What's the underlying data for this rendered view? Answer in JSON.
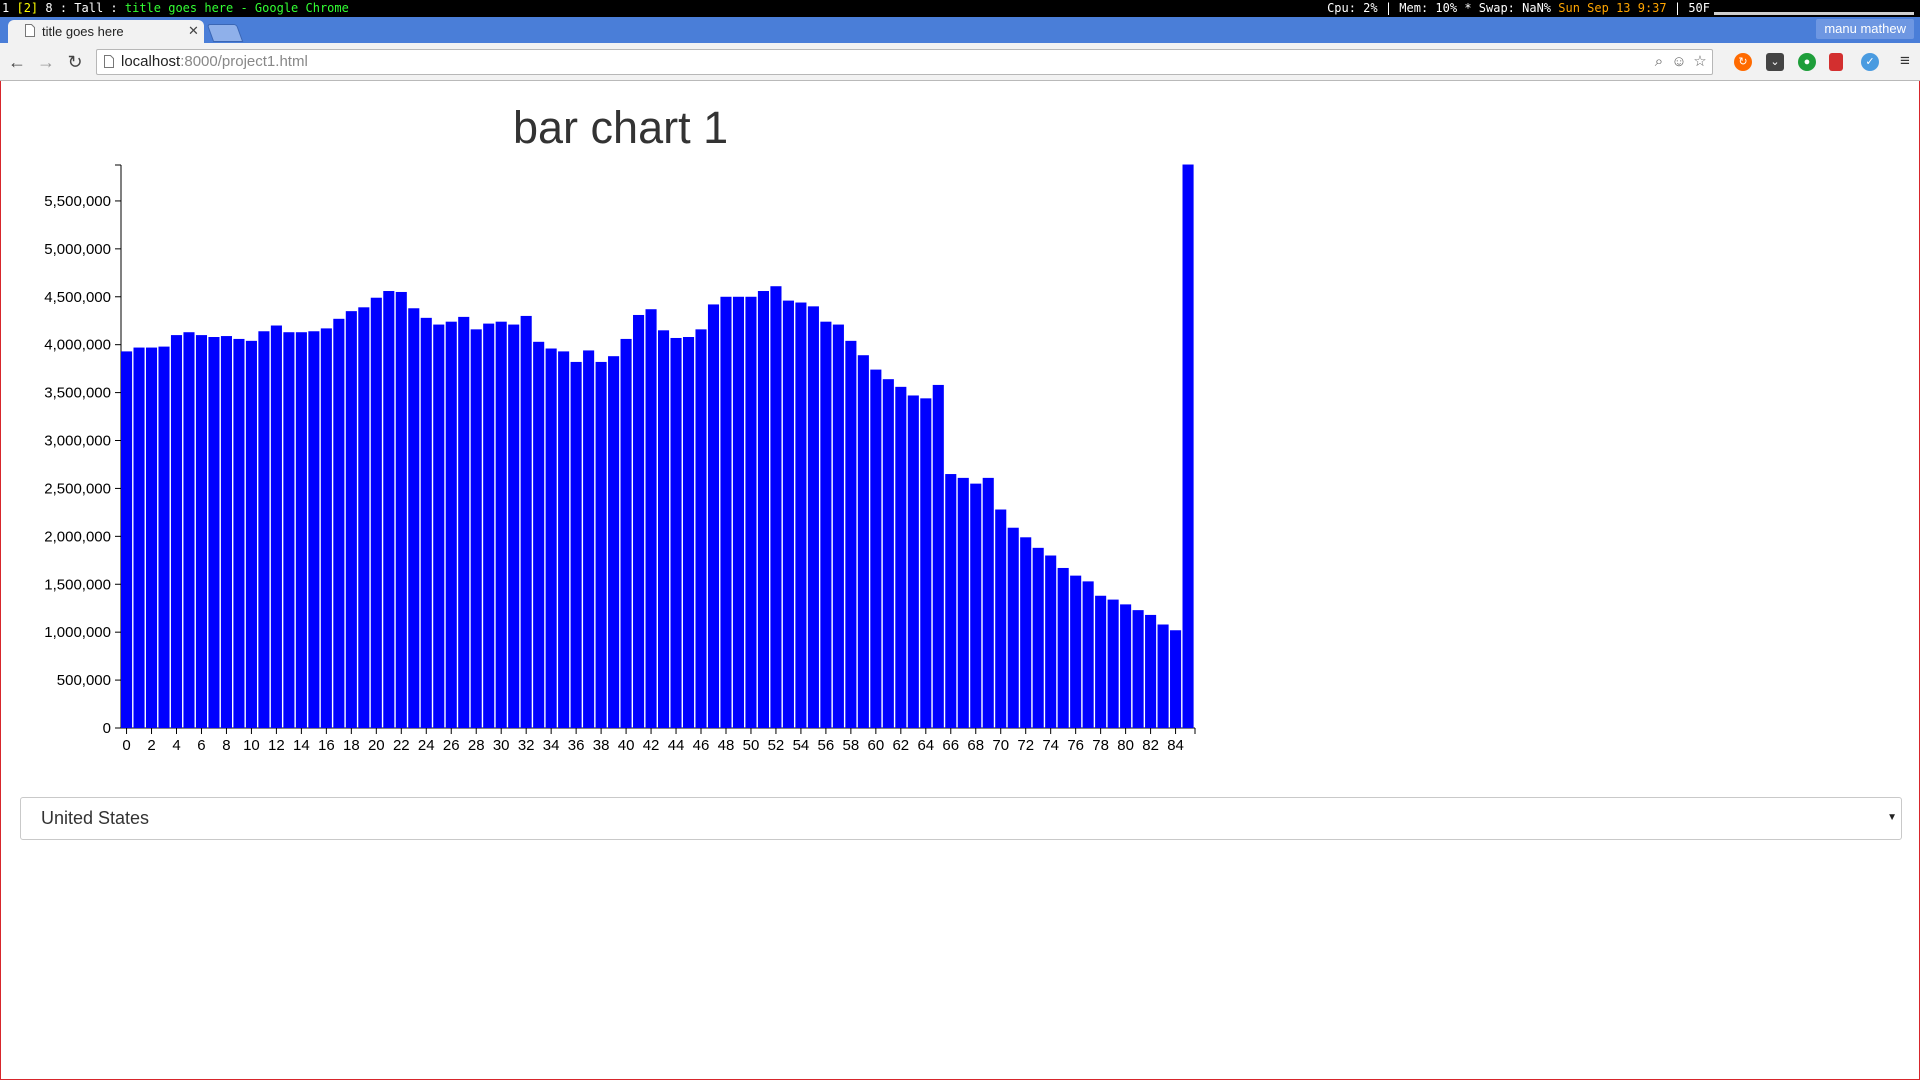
{
  "statusbar": {
    "workspaces": "1",
    "active_workspace": "[2]",
    "workspace_rest": "8 : Tall :",
    "window_title": "title goes here - Google Chrome",
    "stats": "Cpu: 2% | Mem: 10% * Swap: NaN%",
    "datetime": "Sun Sep 13  9:37",
    "temp": "| 50F"
  },
  "browser": {
    "tab_title": "title goes here",
    "profile_name": "manu mathew",
    "url_host": "localhost",
    "url_rest": ":8000/project1.html"
  },
  "icons": {
    "back": "back-arrow-icon",
    "forward": "forward-arrow-icon",
    "reload": "reload-icon",
    "zoom": "magnifier-icon",
    "reddit": "reddit-icon",
    "star": "star-icon",
    "menu": "hamburger-menu-icon"
  },
  "colors": {
    "bar": "#0000ff",
    "tabstrip": "#4a7ed8",
    "status_yellow": "#ffff00",
    "status_green": "#33ff33",
    "status_orange": "#ffa500"
  },
  "chart_data": {
    "type": "bar",
    "title": "bar chart 1",
    "xlabel": "",
    "ylabel": "",
    "ylim": [
      0,
      5875000
    ],
    "yticks": [
      0,
      500000,
      1000000,
      1500000,
      2000000,
      2500000,
      3000000,
      3500000,
      4000000,
      4500000,
      5000000,
      5500000
    ],
    "ytick_labels": [
      "0",
      "500,000",
      "1,000,000",
      "1,500,000",
      "2,000,000",
      "2,500,000",
      "3,000,000",
      "3,500,000",
      "4,000,000",
      "4,500,000",
      "5,000,000",
      "5,500,000"
    ],
    "xtick_labels": [
      "0",
      "2",
      "4",
      "6",
      "8",
      "10",
      "12",
      "14",
      "16",
      "18",
      "20",
      "22",
      "24",
      "26",
      "28",
      "30",
      "32",
      "34",
      "36",
      "38",
      "40",
      "42",
      "44",
      "46",
      "48",
      "50",
      "52",
      "54",
      "56",
      "58",
      "60",
      "62",
      "64",
      "66",
      "68",
      "70",
      "72",
      "74",
      "76",
      "78",
      "80",
      "82",
      "84"
    ],
    "categories": [
      0,
      1,
      2,
      3,
      4,
      5,
      6,
      7,
      8,
      9,
      10,
      11,
      12,
      13,
      14,
      15,
      16,
      17,
      18,
      19,
      20,
      21,
      22,
      23,
      24,
      25,
      26,
      27,
      28,
      29,
      30,
      31,
      32,
      33,
      34,
      35,
      36,
      37,
      38,
      39,
      40,
      41,
      42,
      43,
      44,
      45,
      46,
      47,
      48,
      49,
      50,
      51,
      52,
      53,
      54,
      55,
      56,
      57,
      58,
      59,
      60,
      61,
      62,
      63,
      64,
      65,
      66,
      67,
      68,
      69,
      70,
      71,
      72,
      73,
      74,
      75,
      76,
      77,
      78,
      79,
      80,
      81,
      82,
      83,
      84,
      85
    ],
    "values": [
      3930000,
      3970000,
      3970000,
      3980000,
      4100000,
      4130000,
      4100000,
      4080000,
      4090000,
      4060000,
      4040000,
      4140000,
      4200000,
      4130000,
      4130000,
      4140000,
      4170000,
      4270000,
      4350000,
      4390000,
      4490000,
      4560000,
      4550000,
      4380000,
      4280000,
      4210000,
      4240000,
      4290000,
      4160000,
      4220000,
      4240000,
      4210000,
      4300000,
      4030000,
      3960000,
      3930000,
      3820000,
      3940000,
      3820000,
      3880000,
      4060000,
      4310000,
      4370000,
      4150000,
      4070000,
      4080000,
      4160000,
      4420000,
      4500000,
      4500000,
      4500000,
      4560000,
      4610000,
      4460000,
      4440000,
      4400000,
      4240000,
      4210000,
      4040000,
      3890000,
      3740000,
      3640000,
      3560000,
      3470000,
      3440000,
      3580000,
      2650000,
      2610000,
      2550000,
      2610000,
      2280000,
      2090000,
      1990000,
      1880000,
      1800000,
      1670000,
      1590000,
      1530000,
      1380000,
      1340000,
      1290000,
      1230000,
      1180000,
      1080000,
      1020000,
      5880000
    ]
  },
  "country_select": {
    "value": "United States"
  }
}
